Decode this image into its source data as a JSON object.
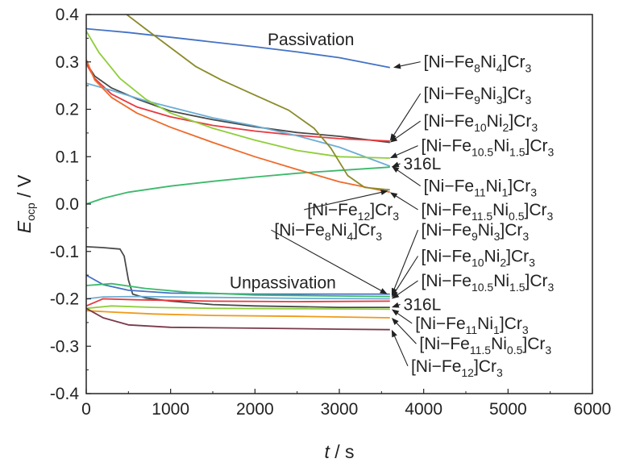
{
  "chart_data": {
    "type": "line",
    "xlabel_var": "t",
    "xlabel_unit": " / s",
    "ylabel_var": "E",
    "ylabel_sub": "ocp",
    "ylabel_unit": " / V",
    "xlim": [
      0,
      6000
    ],
    "ylim": [
      -0.4,
      0.4
    ],
    "xticks": [
      0,
      1000,
      2000,
      3000,
      4000,
      5000,
      6000
    ],
    "yticks": [
      -0.4,
      -0.3,
      -0.2,
      -0.1,
      0.0,
      0.1,
      0.2,
      0.3,
      0.4
    ],
    "ytick_labels": [
      "-0.4",
      "-0.3",
      "-0.2",
      "-0.1",
      "0.0",
      "0.1",
      "0.2",
      "0.3",
      "0.4"
    ],
    "grid": false,
    "regions": [
      {
        "text": "Passivation",
        "x": 2150,
        "y": 0.335
      },
      {
        "text": "Unpassivation",
        "x": 1700,
        "y": -0.178
      }
    ],
    "series": [
      {
        "color": "#4472c4",
        "points": [
          [
            0,
            0.37
          ],
          [
            500,
            0.362
          ],
          [
            1000,
            0.352
          ],
          [
            1500,
            0.342
          ],
          [
            2000,
            0.332
          ],
          [
            2500,
            0.321
          ],
          [
            3000,
            0.309
          ],
          [
            3600,
            0.288
          ]
        ]
      },
      {
        "color": "#4a4a4a",
        "points": [
          [
            0,
            0.298
          ],
          [
            100,
            0.27
          ],
          [
            300,
            0.245
          ],
          [
            600,
            0.222
          ],
          [
            1000,
            0.196
          ],
          [
            1500,
            0.178
          ],
          [
            2000,
            0.163
          ],
          [
            2500,
            0.151
          ],
          [
            3000,
            0.143
          ],
          [
            3600,
            0.13
          ]
        ]
      },
      {
        "color": "#e8393f",
        "points": [
          [
            0,
            0.296
          ],
          [
            100,
            0.265
          ],
          [
            300,
            0.232
          ],
          [
            600,
            0.205
          ],
          [
            1000,
            0.184
          ],
          [
            1500,
            0.166
          ],
          [
            2000,
            0.154
          ],
          [
            2500,
            0.145
          ],
          [
            3000,
            0.138
          ],
          [
            3600,
            0.133
          ]
        ]
      },
      {
        "color": "#6aaed6",
        "points": [
          [
            0,
            0.255
          ],
          [
            300,
            0.24
          ],
          [
            700,
            0.218
          ],
          [
            1100,
            0.2
          ],
          [
            1500,
            0.182
          ],
          [
            2000,
            0.165
          ],
          [
            2500,
            0.144
          ],
          [
            3000,
            0.12
          ],
          [
            3600,
            0.08
          ]
        ]
      },
      {
        "color": "#8fce3a",
        "points": [
          [
            0,
            0.365
          ],
          [
            150,
            0.32
          ],
          [
            400,
            0.265
          ],
          [
            700,
            0.222
          ],
          [
            1000,
            0.192
          ],
          [
            1500,
            0.16
          ],
          [
            2000,
            0.135
          ],
          [
            2500,
            0.113
          ],
          [
            3000,
            0.1
          ],
          [
            3600,
            0.097
          ]
        ]
      },
      {
        "color": "#3cb96b",
        "points": [
          [
            0,
            0.0
          ],
          [
            200,
            0.012
          ],
          [
            500,
            0.025
          ],
          [
            1000,
            0.038
          ],
          [
            1500,
            0.048
          ],
          [
            2000,
            0.057
          ],
          [
            2500,
            0.065
          ],
          [
            3000,
            0.071
          ],
          [
            3600,
            0.078
          ]
        ]
      },
      {
        "color": "#ef6a2a",
        "points": [
          [
            0,
            0.305
          ],
          [
            100,
            0.262
          ],
          [
            300,
            0.225
          ],
          [
            600,
            0.192
          ],
          [
            1000,
            0.162
          ],
          [
            1500,
            0.13
          ],
          [
            2000,
            0.1
          ],
          [
            2500,
            0.073
          ],
          [
            3000,
            0.047
          ],
          [
            3600,
            0.025
          ]
        ]
      },
      {
        "color": "#8b8b2a",
        "points": [
          [
            480,
            0.4
          ],
          [
            700,
            0.37
          ],
          [
            1000,
            0.33
          ],
          [
            1300,
            0.29
          ],
          [
            1600,
            0.262
          ],
          [
            2000,
            0.23
          ],
          [
            2400,
            0.198
          ],
          [
            2700,
            0.16
          ],
          [
            2900,
            0.118
          ],
          [
            3100,
            0.06
          ],
          [
            3300,
            0.035
          ],
          [
            3600,
            0.03
          ]
        ]
      },
      {
        "color": "#4a4a4a",
        "points": [
          [
            0,
            -0.09
          ],
          [
            200,
            -0.092
          ],
          [
            400,
            -0.095
          ],
          [
            450,
            -0.11
          ],
          [
            500,
            -0.16
          ],
          [
            550,
            -0.19
          ],
          [
            700,
            -0.198
          ],
          [
            1000,
            -0.205
          ],
          [
            1500,
            -0.212
          ],
          [
            2000,
            -0.215
          ],
          [
            3000,
            -0.218
          ],
          [
            3600,
            -0.218
          ]
        ]
      },
      {
        "color": "#4472c4",
        "points": [
          [
            0,
            -0.15
          ],
          [
            200,
            -0.17
          ],
          [
            500,
            -0.182
          ],
          [
            1000,
            -0.188
          ],
          [
            2000,
            -0.19
          ],
          [
            3000,
            -0.19
          ],
          [
            3600,
            -0.19
          ]
        ]
      },
      {
        "color": "#3cb96b",
        "points": [
          [
            0,
            -0.172
          ],
          [
            300,
            -0.168
          ],
          [
            700,
            -0.178
          ],
          [
            1200,
            -0.186
          ],
          [
            2000,
            -0.192
          ],
          [
            3000,
            -0.194
          ],
          [
            3600,
            -0.195
          ]
        ]
      },
      {
        "color": "#6aaed6",
        "points": [
          [
            0,
            -0.2
          ],
          [
            200,
            -0.196
          ],
          [
            600,
            -0.195
          ],
          [
            1500,
            -0.197
          ],
          [
            2500,
            -0.199
          ],
          [
            3600,
            -0.2
          ]
        ]
      },
      {
        "color": "#e8393f",
        "points": [
          [
            0,
            -0.215
          ],
          [
            200,
            -0.2
          ],
          [
            600,
            -0.202
          ],
          [
            1500,
            -0.205
          ],
          [
            2500,
            -0.206
          ],
          [
            3600,
            -0.205
          ]
        ]
      },
      {
        "color": "#8fce3a",
        "points": [
          [
            0,
            -0.22
          ],
          [
            300,
            -0.215
          ],
          [
            800,
            -0.218
          ],
          [
            1500,
            -0.22
          ],
          [
            2500,
            -0.221
          ],
          [
            3600,
            -0.222
          ]
        ]
      },
      {
        "color": "#ef9a1a",
        "points": [
          [
            0,
            -0.225
          ],
          [
            300,
            -0.228
          ],
          [
            800,
            -0.232
          ],
          [
            1500,
            -0.235
          ],
          [
            2500,
            -0.237
          ],
          [
            3600,
            -0.24
          ]
        ]
      },
      {
        "color": "#7a3a4a",
        "points": [
          [
            0,
            -0.22
          ],
          [
            200,
            -0.24
          ],
          [
            500,
            -0.255
          ],
          [
            1000,
            -0.26
          ],
          [
            2000,
            -0.262
          ],
          [
            3000,
            -0.264
          ],
          [
            3600,
            -0.265
          ]
        ]
      }
    ],
    "annotations": [
      {
        "label": "[Ni−Fe8Ni4]Cr3",
        "parts": [
          [
            "[Ni−Fe",
            ""
          ],
          [
            "8",
            "sub"
          ],
          [
            "Ni",
            ""
          ],
          [
            "4",
            "sub"
          ],
          [
            "]Cr",
            ""
          ],
          [
            "3",
            "sub"
          ]
        ],
        "tx": 4000,
        "ty": 0.29,
        "ax": 3640,
        "ay": 0.288
      },
      {
        "label": "[Ni−Fe9Ni3]Cr3",
        "parts": [
          [
            "[Ni−Fe",
            ""
          ],
          [
            "9",
            "sub"
          ],
          [
            "Ni",
            ""
          ],
          [
            "3",
            "sub"
          ],
          [
            "]Cr",
            ""
          ],
          [
            "3",
            "sub"
          ]
        ],
        "tx": 4000,
        "ty": 0.223,
        "ax": 3600,
        "ay": 0.133
      },
      {
        "label": "[Ni−Fe10Ni2]Cr3",
        "parts": [
          [
            "[Ni−Fe",
            ""
          ],
          [
            "10",
            "sub"
          ],
          [
            "Ni",
            ""
          ],
          [
            "2",
            "sub"
          ],
          [
            "]Cr",
            ""
          ],
          [
            "3",
            "sub"
          ]
        ],
        "tx": 4000,
        "ty": 0.165,
        "ax": 3600,
        "ay": 0.13
      },
      {
        "label": "[Ni−Fe10.5Ni1.5]Cr3",
        "parts": [
          [
            "[Ni−Fe",
            ""
          ],
          [
            "10.5",
            "sub"
          ],
          [
            "Ni",
            ""
          ],
          [
            "1.5",
            "sub"
          ],
          [
            "]Cr",
            ""
          ],
          [
            "3",
            "sub"
          ]
        ],
        "tx": 3970,
        "ty": 0.113,
        "ax": 3600,
        "ay": 0.097
      },
      {
        "label": "316L",
        "parts": [
          [
            "316L",
            ""
          ]
        ],
        "tx": 3760,
        "ty": 0.075,
        "ax": 3620,
        "ay": 0.078
      },
      {
        "label": "[Ni−Fe11Ni1]Cr3",
        "parts": [
          [
            "[Ni−Fe",
            ""
          ],
          [
            "11",
            "sub"
          ],
          [
            "Ni",
            ""
          ],
          [
            "1",
            "sub"
          ],
          [
            "]Cr",
            ""
          ],
          [
            "3",
            "sub"
          ]
        ],
        "tx": 4000,
        "ty": 0.028,
        "ax": 3620,
        "ay": 0.08
      },
      {
        "label": "[Ni−Fe12]Cr3",
        "parts": [
          [
            "[Ni−Fe",
            ""
          ],
          [
            "12",
            "sub"
          ],
          [
            "]Cr",
            ""
          ],
          [
            "3",
            "sub"
          ]
        ],
        "tx": 2620,
        "ty": -0.022,
        "ax": 3580,
        "ay": 0.028
      },
      {
        "label": "[Ni−Fe11.5Ni0.5]Cr3",
        "parts": [
          [
            "[Ni−Fe",
            ""
          ],
          [
            "11.5",
            "sub"
          ],
          [
            "Ni",
            ""
          ],
          [
            "0.5",
            "sub"
          ],
          [
            "]Cr",
            ""
          ],
          [
            "3",
            "sub"
          ]
        ],
        "tx": 3970,
        "ty": -0.022,
        "ax": 3600,
        "ay": 0.025
      },
      {
        "label": "[Ni−Fe8Ni4]Cr3",
        "parts": [
          [
            "[Ni−Fe",
            ""
          ],
          [
            "8",
            "sub"
          ],
          [
            "Ni",
            ""
          ],
          [
            "4",
            "sub"
          ],
          [
            "]Cr",
            ""
          ],
          [
            "3",
            "sub"
          ]
        ],
        "tx": 2230,
        "ty": -0.065,
        "ax": 3570,
        "ay": -0.19
      },
      {
        "label": "[Ni−Fe9Ni3]Cr3",
        "parts": [
          [
            "[Ni−Fe",
            ""
          ],
          [
            "9",
            "sub"
          ],
          [
            "Ni",
            ""
          ],
          [
            "3",
            "sub"
          ],
          [
            "]Cr",
            ""
          ],
          [
            "3",
            "sub"
          ]
        ],
        "tx": 3970,
        "ty": -0.065,
        "ax": 3620,
        "ay": -0.193
      },
      {
        "label": "[Ni−Fe10Ni2]Cr3",
        "parts": [
          [
            "[Ni−Fe",
            ""
          ],
          [
            "10",
            "sub"
          ],
          [
            "Ni",
            ""
          ],
          [
            "2",
            "sub"
          ],
          [
            "]Cr",
            ""
          ],
          [
            "3",
            "sub"
          ]
        ],
        "tx": 3970,
        "ty": -0.12,
        "ax": 3620,
        "ay": -0.197
      },
      {
        "label": "[Ni−Fe10.5Ni1.5]Cr3",
        "parts": [
          [
            "[Ni−Fe",
            ""
          ],
          [
            "10.5",
            "sub"
          ],
          [
            "Ni",
            ""
          ],
          [
            "1.5",
            "sub"
          ],
          [
            "]Cr",
            ""
          ],
          [
            "3",
            "sub"
          ]
        ],
        "tx": 3970,
        "ty": -0.172,
        "ax": 3620,
        "ay": -0.2
      },
      {
        "label": "316L",
        "parts": [
          [
            "316L",
            ""
          ]
        ],
        "tx": 3760,
        "ty": -0.222,
        "ax": 3620,
        "ay": -0.218
      },
      {
        "label": "[Ni−Fe11Ni1]Cr3",
        "parts": [
          [
            "[Ni−Fe",
            ""
          ],
          [
            "11",
            "sub"
          ],
          [
            "Ni",
            ""
          ],
          [
            "1",
            "sub"
          ],
          [
            "]Cr",
            ""
          ],
          [
            "3",
            "sub"
          ]
        ],
        "tx": 3900,
        "ty": -0.262,
        "ax": 3620,
        "ay": -0.222
      },
      {
        "label": "[Ni−Fe11.5Ni0.5]Cr3",
        "parts": [
          [
            "[Ni−Fe",
            ""
          ],
          [
            "11.5",
            "sub"
          ],
          [
            "Ni",
            ""
          ],
          [
            "0.5",
            "sub"
          ],
          [
            "]Cr",
            ""
          ],
          [
            "3",
            "sub"
          ]
        ],
        "tx": 3950,
        "ty": -0.305,
        "ax": 3620,
        "ay": -0.24
      },
      {
        "label": "[Ni−Fe12]Cr3",
        "parts": [
          [
            "[Ni−Fe",
            ""
          ],
          [
            "12",
            "sub"
          ],
          [
            "]Cr",
            ""
          ],
          [
            "3",
            "sub"
          ]
        ],
        "tx": 3850,
        "ty": -0.352,
        "ax": 3620,
        "ay": -0.265
      }
    ]
  }
}
